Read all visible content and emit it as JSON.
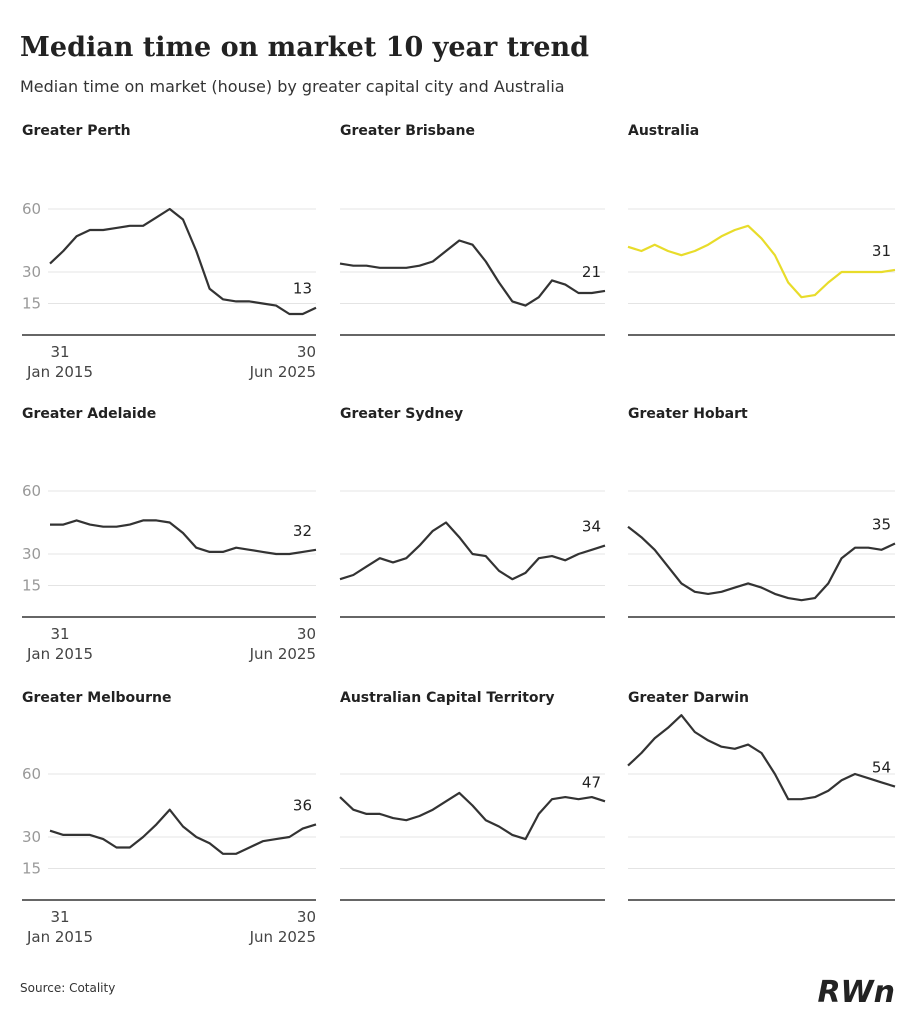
{
  "title": "Median time on market 10 year trend",
  "subtitle": "Median time on market (house) by greater capital city and Australia",
  "source": "Source: Cotality",
  "logo": "RWn",
  "x_axis": {
    "start": [
      "31",
      "Jan 2015"
    ],
    "end": [
      "30",
      "Jun 2025"
    ]
  },
  "chart_data": [
    {
      "type": "line",
      "title": "Greater Perth",
      "color": "#333333",
      "tick_labels": true,
      "grid": true,
      "ylim": [
        0,
        90
      ],
      "yticks": [
        15,
        30,
        60
      ],
      "values": [
        34,
        40,
        47,
        50,
        50,
        51,
        52,
        52,
        56,
        60,
        55,
        40,
        22,
        17,
        16,
        16,
        15,
        14,
        10,
        10,
        13
      ]
    },
    {
      "type": "line",
      "title": "Greater Brisbane",
      "color": "#333333",
      "tick_labels": false,
      "grid": true,
      "ylim": [
        0,
        90
      ],
      "yticks": [
        15,
        30,
        60
      ],
      "values": [
        34,
        33,
        33,
        32,
        32,
        32,
        33,
        35,
        40,
        45,
        43,
        35,
        25,
        16,
        14,
        18,
        26,
        24,
        20,
        20,
        21
      ]
    },
    {
      "type": "line",
      "title": "Australia",
      "color": "#e8dc2a",
      "tick_labels": false,
      "grid": true,
      "ylim": [
        0,
        90
      ],
      "yticks": [
        15,
        30,
        60
      ],
      "values": [
        42,
        40,
        43,
        40,
        38,
        40,
        43,
        47,
        50,
        52,
        46,
        38,
        25,
        18,
        19,
        25,
        30,
        30,
        30,
        30,
        31
      ]
    },
    {
      "type": "line",
      "title": "Greater Adelaide",
      "color": "#333333",
      "tick_labels": true,
      "grid": true,
      "ylim": [
        0,
        90
      ],
      "yticks": [
        15,
        30,
        60
      ],
      "values": [
        44,
        44,
        46,
        44,
        43,
        43,
        44,
        46,
        46,
        45,
        40,
        33,
        31,
        31,
        33,
        32,
        31,
        30,
        30,
        31,
        32
      ]
    },
    {
      "type": "line",
      "title": "Greater Sydney",
      "color": "#333333",
      "tick_labels": false,
      "grid": true,
      "ylim": [
        0,
        90
      ],
      "yticks": [
        15,
        30,
        60
      ],
      "values": [
        18,
        20,
        24,
        28,
        26,
        28,
        34,
        41,
        45,
        38,
        30,
        29,
        22,
        18,
        21,
        28,
        29,
        27,
        30,
        32,
        34
      ]
    },
    {
      "type": "line",
      "title": "Greater Hobart",
      "color": "#333333",
      "tick_labels": false,
      "grid": true,
      "ylim": [
        0,
        90
      ],
      "yticks": [
        15,
        30,
        60
      ],
      "values": [
        43,
        38,
        32,
        24,
        16,
        12,
        11,
        12,
        14,
        16,
        14,
        11,
        9,
        8,
        9,
        16,
        28,
        33,
        33,
        32,
        35
      ]
    },
    {
      "type": "line",
      "title": "Greater Melbourne",
      "color": "#333333",
      "tick_labels": true,
      "grid": true,
      "ylim": [
        0,
        90
      ],
      "yticks": [
        15,
        30,
        60
      ],
      "values": [
        33,
        31,
        31,
        31,
        29,
        25,
        25,
        30,
        36,
        43,
        35,
        30,
        27,
        22,
        22,
        25,
        28,
        29,
        30,
        34,
        36
      ]
    },
    {
      "type": "line",
      "title": "Australian Capital Territory",
      "color": "#333333",
      "tick_labels": false,
      "grid": true,
      "ylim": [
        0,
        90
      ],
      "yticks": [
        15,
        30,
        60
      ],
      "values": [
        49,
        43,
        41,
        41,
        39,
        38,
        40,
        43,
        47,
        51,
        45,
        38,
        35,
        31,
        29,
        41,
        48,
        49,
        48,
        49,
        47
      ]
    },
    {
      "type": "line",
      "title": "Greater Darwin",
      "color": "#333333",
      "tick_labels": false,
      "grid": true,
      "ylim": [
        0,
        90
      ],
      "yticks": [
        15,
        30,
        60
      ],
      "values": [
        64,
        70,
        77,
        82,
        88,
        80,
        76,
        73,
        72,
        74,
        70,
        60,
        48,
        48,
        49,
        52,
        57,
        60,
        58,
        56,
        54
      ]
    }
  ]
}
